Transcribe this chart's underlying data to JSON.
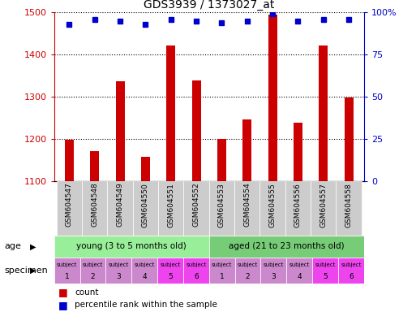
{
  "title": "GDS3939 / 1373027_at",
  "samples": [
    "GSM604547",
    "GSM604548",
    "GSM604549",
    "GSM604550",
    "GSM604551",
    "GSM604552",
    "GSM604553",
    "GSM604554",
    "GSM604555",
    "GSM604556",
    "GSM604557",
    "GSM604558"
  ],
  "counts": [
    1197,
    1170,
    1337,
    1158,
    1422,
    1338,
    1199,
    1247,
    1494,
    1238,
    1422,
    1298
  ],
  "percentile_ranks": [
    93,
    96,
    95,
    93,
    96,
    95,
    94,
    95,
    99,
    95,
    96,
    96
  ],
  "ylim_left": [
    1100,
    1500
  ],
  "ylim_right": [
    0,
    100
  ],
  "yticks_left": [
    1100,
    1200,
    1300,
    1400,
    1500
  ],
  "yticks_right": [
    0,
    25,
    50,
    75,
    100
  ],
  "bar_color": "#cc0000",
  "dot_color": "#0000cc",
  "age_groups": [
    {
      "label": "young (3 to 5 months old)",
      "start": 0,
      "end": 6,
      "color": "#99ee99"
    },
    {
      "label": "aged (21 to 23 months old)",
      "start": 6,
      "end": 12,
      "color": "#77cc77"
    }
  ],
  "specimen_labels": [
    "subject\n1",
    "subject\n2",
    "subject\n3",
    "subject\n4",
    "subject\n5",
    "subject\n6",
    "subject\n1",
    "subject\n2",
    "subject\n3",
    "subject\n4",
    "subject\n5",
    "subject\n6"
  ],
  "specimen_colors": [
    "#cc88cc",
    "#cc88cc",
    "#cc88cc",
    "#cc88cc",
    "#ee44ee",
    "#ee44ee",
    "#cc88cc",
    "#cc88cc",
    "#cc88cc",
    "#cc88cc",
    "#ee44ee",
    "#ee44ee"
  ],
  "annotation_age": "age",
  "annotation_specimen": "specimen",
  "legend_count_color": "#cc0000",
  "legend_dot_color": "#0000cc",
  "background_color": "#ffffff",
  "xticklabel_bg": "#cccccc",
  "bar_width": 0.35
}
